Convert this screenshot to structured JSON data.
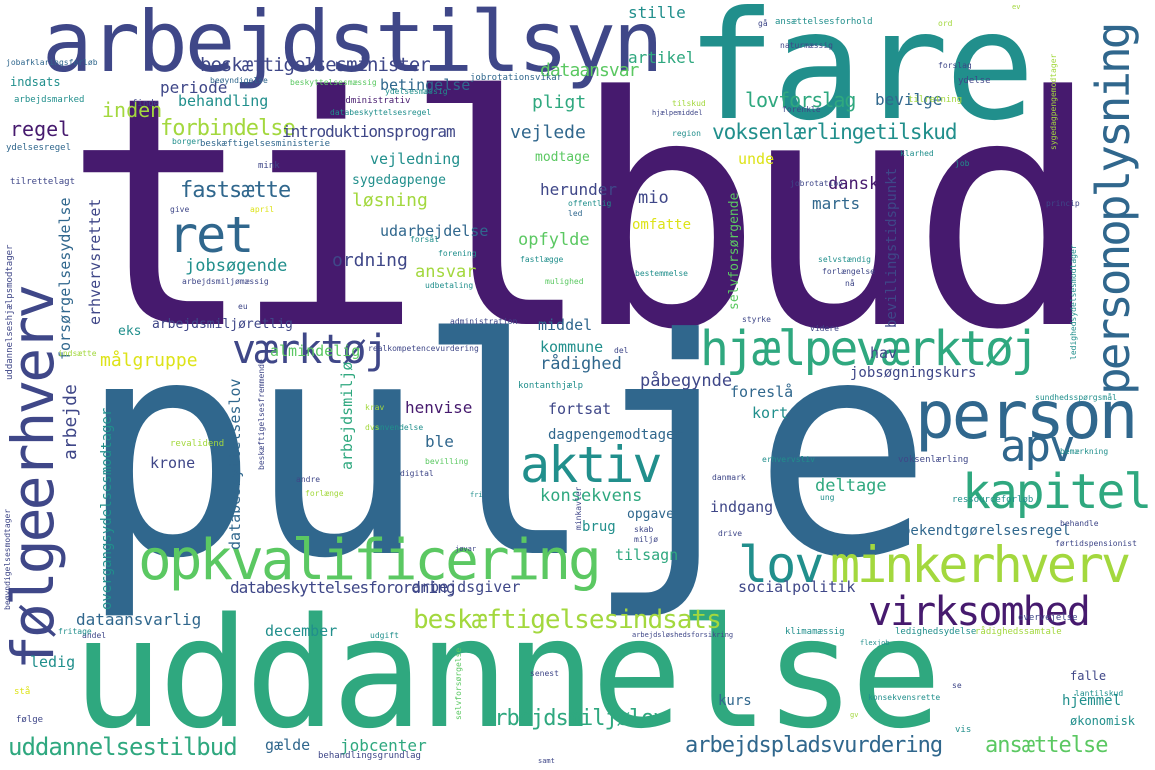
{
  "palette": {
    "dark_purple": "#461a6e",
    "indigo": "#3f4788",
    "blue": "#30678d",
    "teal": "#218f8c",
    "green": "#2fa87f",
    "light_green": "#5bc862",
    "lime": "#a3d83e",
    "yellow": "#dde318"
  },
  "words": [
    {
      "text": "tilbud",
      "color": "dark_purple",
      "rot": 0
    },
    {
      "text": "pulje",
      "color": "blue",
      "rot": 0
    },
    {
      "text": "uddannelse",
      "color": "green",
      "rot": 0
    },
    {
      "text": "fare",
      "color": "teal",
      "rot": 0
    },
    {
      "text": "arbejdstilsyn",
      "color": "indigo",
      "rot": 0
    },
    {
      "text": "følgeerhverv",
      "color": "indigo",
      "rot": -90
    },
    {
      "text": "personoplysning",
      "color": "blue",
      "rot": -90
    },
    {
      "text": "opkvalificering",
      "color": "light_green",
      "rot": 0
    },
    {
      "text": "hjælpeværktøj",
      "color": "green",
      "rot": 0
    },
    {
      "text": "person",
      "color": "blue",
      "rot": 0
    },
    {
      "text": "minkerhverv",
      "color": "lime",
      "rot": 0
    },
    {
      "text": "virksomhed",
      "color": "dark_purple",
      "rot": 0
    },
    {
      "text": "kapitel",
      "color": "green",
      "rot": 0
    },
    {
      "text": "aktiv",
      "color": "teal",
      "rot": 0
    },
    {
      "text": "ret",
      "color": "blue",
      "rot": 0
    },
    {
      "text": "værktøj",
      "color": "indigo",
      "rot": 0
    },
    {
      "text": "lov",
      "color": "teal",
      "rot": 0
    },
    {
      "text": "apv",
      "color": "blue",
      "rot": 0
    },
    {
      "text": "beskæftigelsesindsats",
      "color": "lime",
      "rot": 0
    },
    {
      "text": "uddannelsestilbud",
      "color": "green",
      "rot": 0
    },
    {
      "text": "arbejdsmiljølov",
      "color": "green",
      "rot": 0
    },
    {
      "text": "arbejdspladsvurdering",
      "color": "blue",
      "rot": 0
    },
    {
      "text": "ansættelse",
      "color": "light_green",
      "rot": 0
    },
    {
      "text": "beskæftigelsesminister",
      "color": "indigo",
      "rot": 0
    },
    {
      "text": "voksenlærlingetilskud",
      "color": "teal",
      "rot": 0
    },
    {
      "text": "lovforslag",
      "color": "green",
      "rot": 0
    },
    {
      "text": "bevilge",
      "color": "blue",
      "rot": 0
    },
    {
      "text": "stille",
      "color": "teal",
      "rot": 0
    },
    {
      "text": "artikel",
      "color": "green",
      "rot": 0
    },
    {
      "text": "dataansvar",
      "color": "light_green",
      "rot": 0
    },
    {
      "text": "periode",
      "color": "indigo",
      "rot": 0
    },
    {
      "text": "inden",
      "color": "lime",
      "rot": 0
    },
    {
      "text": "betingelse",
      "color": "blue",
      "rot": 0
    },
    {
      "text": "behandling",
      "color": "teal",
      "rot": 0
    },
    {
      "text": "pligt",
      "color": "green",
      "rot": 0
    },
    {
      "text": "forbindelse",
      "color": "lime",
      "rot": 0
    },
    {
      "text": "introduktionsprogram",
      "color": "indigo",
      "rot": 0
    },
    {
      "text": "vejlede",
      "color": "blue",
      "rot": 0
    },
    {
      "text": "regel",
      "color": "dark_purple",
      "rot": 0
    },
    {
      "text": "vejledning",
      "color": "teal",
      "rot": 0
    },
    {
      "text": "modtage",
      "color": "light_green",
      "rot": 0
    },
    {
      "text": "unde",
      "color": "yellow",
      "rot": 0
    },
    {
      "text": "fastsætte",
      "color": "blue",
      "rot": 0
    },
    {
      "text": "sygedagpenge",
      "color": "teal",
      "rot": 0
    },
    {
      "text": "løsning",
      "color": "lime",
      "rot": 0
    },
    {
      "text": "herunder",
      "color": "indigo",
      "rot": 0
    },
    {
      "text": "mio",
      "color": "indigo",
      "rot": 0
    },
    {
      "text": "dansk",
      "color": "dark_purple",
      "rot": 0
    },
    {
      "text": "marts",
      "color": "blue",
      "rot": 0
    },
    {
      "text": "omfatte",
      "color": "yellow",
      "rot": 0
    },
    {
      "text": "udarbejdelse",
      "color": "blue",
      "rot": 0
    },
    {
      "text": "opfylde",
      "color": "light_green",
      "rot": 0
    },
    {
      "text": "ordning",
      "color": "indigo",
      "rot": 0
    },
    {
      "text": "ansvar",
      "color": "lime",
      "rot": 0
    },
    {
      "text": "jobsøgende",
      "color": "teal",
      "rot": 0
    },
    {
      "text": "almindelig",
      "color": "light_green",
      "rot": 0
    },
    {
      "text": "målgruppe",
      "color": "yellow",
      "rot": 0
    },
    {
      "text": "rådighed",
      "color": "blue",
      "rot": 0
    },
    {
      "text": "påbegynde",
      "color": "indigo",
      "rot": 0
    },
    {
      "text": "foreslå",
      "color": "blue",
      "rot": 0
    },
    {
      "text": "kommune",
      "color": "teal",
      "rot": 0
    },
    {
      "text": "middel",
      "color": "blue",
      "rot": 0
    },
    {
      "text": "hav",
      "color": "indigo",
      "rot": 0
    },
    {
      "text": "jobsøgningskurs",
      "color": "indigo",
      "rot": 0
    },
    {
      "text": "henvise",
      "color": "dark_purple",
      "rot": 0
    },
    {
      "text": "fortsat",
      "color": "indigo",
      "rot": 0
    },
    {
      "text": "kort",
      "color": "teal",
      "rot": 0
    },
    {
      "text": "ble",
      "color": "blue",
      "rot": 0
    },
    {
      "text": "dagpengemodtager",
      "color": "blue",
      "rot": 0
    },
    {
      "text": "krone",
      "color": "indigo",
      "rot": 0
    },
    {
      "text": "konsekvens",
      "color": "green",
      "rot": 0
    },
    {
      "text": "deltage",
      "color": "green",
      "rot": 0
    },
    {
      "text": "indgang",
      "color": "indigo",
      "rot": 0
    },
    {
      "text": "opgave",
      "color": "blue",
      "rot": 0
    },
    {
      "text": "brug",
      "color": "teal",
      "rot": 0
    },
    {
      "text": "bekendtgørelsesregel",
      "color": "blue",
      "rot": 0
    },
    {
      "text": "tilsagn",
      "color": "green",
      "rot": 0
    },
    {
      "text": "databeskyttelsesforordning",
      "color": "indigo",
      "rot": 0
    },
    {
      "text": "arbejdsgiver",
      "color": "indigo",
      "rot": 0
    },
    {
      "text": "socialpolitik",
      "color": "indigo",
      "rot": 0
    },
    {
      "text": "dataansvarlig",
      "color": "blue",
      "rot": 0
    },
    {
      "text": "december",
      "color": "teal",
      "rot": 0
    },
    {
      "text": "ledig",
      "color": "teal",
      "rot": 0
    },
    {
      "text": "hjemmel",
      "color": "teal",
      "rot": 0
    },
    {
      "text": "kurs",
      "color": "blue",
      "rot": 0
    },
    {
      "text": "gælde",
      "color": "blue",
      "rot": 0
    },
    {
      "text": "jobcenter",
      "color": "green",
      "rot": 0
    },
    {
      "text": "eks",
      "color": "teal",
      "rot": 0
    },
    {
      "text": "arbejdsmiljøretlig",
      "color": "indigo",
      "rot": 0
    },
    {
      "text": "erhvervsrettet",
      "color": "indigo",
      "rot": -90
    },
    {
      "text": "forsørgelsesydelse",
      "color": "blue",
      "rot": -90
    },
    {
      "text": "arbejde",
      "color": "indigo",
      "rot": -90
    },
    {
      "text": "overgangsydelsesmodtager",
      "color": "teal",
      "rot": -90
    },
    {
      "text": "databeskyttelseslov",
      "color": "blue",
      "rot": -90
    },
    {
      "text": "arbejdsmiljø",
      "color": "green",
      "rot": -90
    },
    {
      "text": "selvforsørgende",
      "color": "light_green",
      "rot": -90
    },
    {
      "text": "bevillingstidspunkt",
      "color": "indigo",
      "rot": -90
    },
    {
      "text": "indsats",
      "color": "teal",
      "rot": 0
    },
    {
      "text": "arbejdsmarked",
      "color": "teal",
      "rot": 0
    },
    {
      "text": "ydelsesregel",
      "color": "blue",
      "rot": 0
    },
    {
      "text": "tilrettelagt",
      "color": "indigo",
      "rot": 0
    },
    {
      "text": "jobafklaringsforløb",
      "color": "blue",
      "rot": 0
    },
    {
      "text": "beskæftigelsesministerie",
      "color": "blue",
      "rot": 0
    },
    {
      "text": "administrativ",
      "color": "dark_purple",
      "rot": 0
    },
    {
      "text": "databeskyttelsesregel",
      "color": "teal",
      "rot": 0
    },
    {
      "text": "beskyttelsesmæssig",
      "color": "light_green",
      "rot": 0
    },
    {
      "text": "ydelsesmæssig",
      "color": "teal",
      "rot": 0
    },
    {
      "text": "jobrotationsvikar",
      "color": "blue",
      "rot": 0
    },
    {
      "text": "beøyndigelse",
      "color": "blue",
      "rot": 0
    },
    {
      "text": "finde",
      "color": "indigo",
      "rot": 0
    },
    {
      "text": "borger",
      "color": "teal",
      "rot": 0
    },
    {
      "text": "mink",
      "color": "indigo",
      "rot": 0
    },
    {
      "text": "give",
      "color": "indigo",
      "rot": 0
    },
    {
      "text": "april",
      "color": "yellow",
      "rot": 0
    },
    {
      "text": "offentlig",
      "color": "teal",
      "rot": 0
    },
    {
      "text": "led",
      "color": "blue",
      "rot": 0
    },
    {
      "text": "forsål",
      "color": "teal",
      "rot": 0
    },
    {
      "text": "forening",
      "color": "teal",
      "rot": 0
    },
    {
      "text": "fastlægge",
      "color": "teal",
      "rot": 0
    },
    {
      "text": "udbetaling",
      "color": "teal",
      "rot": 0
    },
    {
      "text": "mulighed",
      "color": "light_green",
      "rot": 0
    },
    {
      "text": "arbejdsmiljømæssig",
      "color": "indigo",
      "rot": 0
    },
    {
      "text": "administration",
      "color": "indigo",
      "rot": 0
    },
    {
      "text": "styrke",
      "color": "indigo",
      "rot": 0
    },
    {
      "text": "videre",
      "color": "indigo",
      "rot": 0
    },
    {
      "text": "uddannelseshjælpsmodtager",
      "color": "indigo",
      "rot": -90
    },
    {
      "text": "indsætte",
      "color": "lime",
      "rot": 0
    },
    {
      "text": "revalidend",
      "color": "lime",
      "rot": 0
    },
    {
      "text": "beskæftigelsesfremmende",
      "color": "indigo",
      "rot": -90
    },
    {
      "text": "realkompetencevurdering",
      "color": "indigo",
      "rot": 0
    },
    {
      "text": "kontanthjælp",
      "color": "teal",
      "rot": 0
    },
    {
      "text": "anvendelse",
      "color": "teal",
      "rot": 0
    },
    {
      "text": "krav",
      "color": "lime",
      "rot": 0
    },
    {
      "text": "dvs",
      "color": "lime",
      "rot": 0
    },
    {
      "text": "bevilling",
      "color": "light_green",
      "rot": 0
    },
    {
      "text": "digital",
      "color": "indigo",
      "rot": 0
    },
    {
      "text": "andre",
      "color": "indigo",
      "rot": 0
    },
    {
      "text": "forlænge",
      "color": "lime",
      "rot": 0
    },
    {
      "text": "ansættelsesforhold",
      "color": "teal",
      "rot": 0
    },
    {
      "text": "ord",
      "color": "lime",
      "rot": 0
    },
    {
      "text": "naturmæssig",
      "color": "indigo",
      "rot": 0
    },
    {
      "text": "forslag",
      "color": "indigo",
      "rot": 0
    },
    {
      "text": "ydelse",
      "color": "indigo",
      "rot": 0
    },
    {
      "text": "tilretning",
      "color": "lime",
      "rot": 0
    },
    {
      "text": "sygedagpengemodtager",
      "color": "lime",
      "rot": -90
    },
    {
      "text": "forenkle",
      "color": "indigo",
      "rot": 0
    },
    {
      "text": "region",
      "color": "teal",
      "rot": 0
    },
    {
      "text": "klarhed",
      "color": "teal",
      "rot": 0
    },
    {
      "text": "job",
      "color": "teal",
      "rot": 0
    },
    {
      "text": "princip",
      "color": "indigo",
      "rot": 0
    },
    {
      "text": "jobrotation",
      "color": "indigo",
      "rot": 0
    },
    {
      "text": "selvstændig",
      "color": "teal",
      "rot": 0
    },
    {
      "text": "forlængelse",
      "color": "indigo",
      "rot": 0
    },
    {
      "text": "bestemmelse",
      "color": "teal",
      "rot": 0
    },
    {
      "text": "ledighedsydelsesmodtager",
      "color": "teal",
      "rot": -90
    },
    {
      "text": "sundhedsspørgsmål",
      "color": "teal",
      "rot": 0
    },
    {
      "text": "erhvervsliv",
      "color": "teal",
      "rot": 0
    },
    {
      "text": "danmark",
      "color": "indigo",
      "rot": 0
    },
    {
      "text": "voksenlærling",
      "color": "indigo",
      "rot": 0
    },
    {
      "text": "bemærkning",
      "color": "teal",
      "rot": 0
    },
    {
      "text": "ressourceforløb",
      "color": "teal",
      "rot": 0
    },
    {
      "text": "behandle",
      "color": "indigo",
      "rot": 0
    },
    {
      "text": "førtidspensionist",
      "color": "indigo",
      "rot": 0
    },
    {
      "text": "drive",
      "color": "indigo",
      "rot": 0
    },
    {
      "text": "skab",
      "color": "indigo",
      "rot": 0
    },
    {
      "text": "miljø",
      "color": "indigo",
      "rot": 0
    },
    {
      "text": "minkavler",
      "color": "indigo",
      "rot": -90
    },
    {
      "text": "overvejelse",
      "color": "indigo",
      "rot": 0
    },
    {
      "text": "ledighedsydelse",
      "color": "teal",
      "rot": 0
    },
    {
      "text": "rådighedssamtale",
      "color": "lime",
      "rot": 0
    },
    {
      "text": "klimamæssig",
      "color": "teal",
      "rot": 0
    },
    {
      "text": "arbejdsløshedsforsikring",
      "color": "indigo",
      "rot": 0
    },
    {
      "text": "andel",
      "color": "indigo",
      "rot": 0
    },
    {
      "text": "udgift",
      "color": "teal",
      "rot": 0
    },
    {
      "text": "fritage",
      "color": "teal",
      "rot": 0
    },
    {
      "text": "senest",
      "color": "indigo",
      "rot": 0
    },
    {
      "text": "selvforsørgelse",
      "color": "light_green",
      "rot": -90
    },
    {
      "text": "falle",
      "color": "indigo",
      "rot": 0
    },
    {
      "text": "lantilskud",
      "color": "teal",
      "rot": 0
    },
    {
      "text": "konsekvensrette",
      "color": "teal",
      "rot": 0
    },
    {
      "text": "økonomisk",
      "color": "teal",
      "rot": 0
    },
    {
      "text": "behandlingsgrundlag",
      "color": "indigo",
      "rot": 0
    },
    {
      "text": "vis",
      "color": "teal",
      "rot": 0
    },
    {
      "text": "følge",
      "color": "indigo",
      "rot": 0
    },
    {
      "text": "stå",
      "color": "yellow",
      "rot": 0
    },
    {
      "text": "beøyndigelsesmodtager",
      "color": "indigo",
      "rot": -90
    },
    {
      "text": "jøvar",
      "color": "indigo",
      "rot": 0
    },
    {
      "text": "nå",
      "color": "indigo",
      "rot": 0
    },
    {
      "text": "del",
      "color": "indigo",
      "rot": 0
    },
    {
      "text": "eu",
      "color": "indigo",
      "rot": 0
    },
    {
      "text": "hjælpemiddel",
      "color": "indigo",
      "rot": 0
    },
    {
      "text": "tilskud",
      "color": "lime",
      "rot": 0
    },
    {
      "text": "gå",
      "color": "indigo",
      "rot": 0
    },
    {
      "text": "se",
      "color": "indigo",
      "rot": 0
    },
    {
      "text": "samt",
      "color": "indigo",
      "rot": 0
    },
    {
      "text": "ung",
      "color": "teal",
      "rot": 0
    },
    {
      "text": "fri",
      "color": "teal",
      "rot": 0
    },
    {
      "text": "flexjob",
      "color": "teal",
      "rot": 0
    },
    {
      "text": "ev",
      "color": "lime",
      "rot": 0
    },
    {
      "text": "gv",
      "color": "lime",
      "rot": 0
    }
  ]
}
